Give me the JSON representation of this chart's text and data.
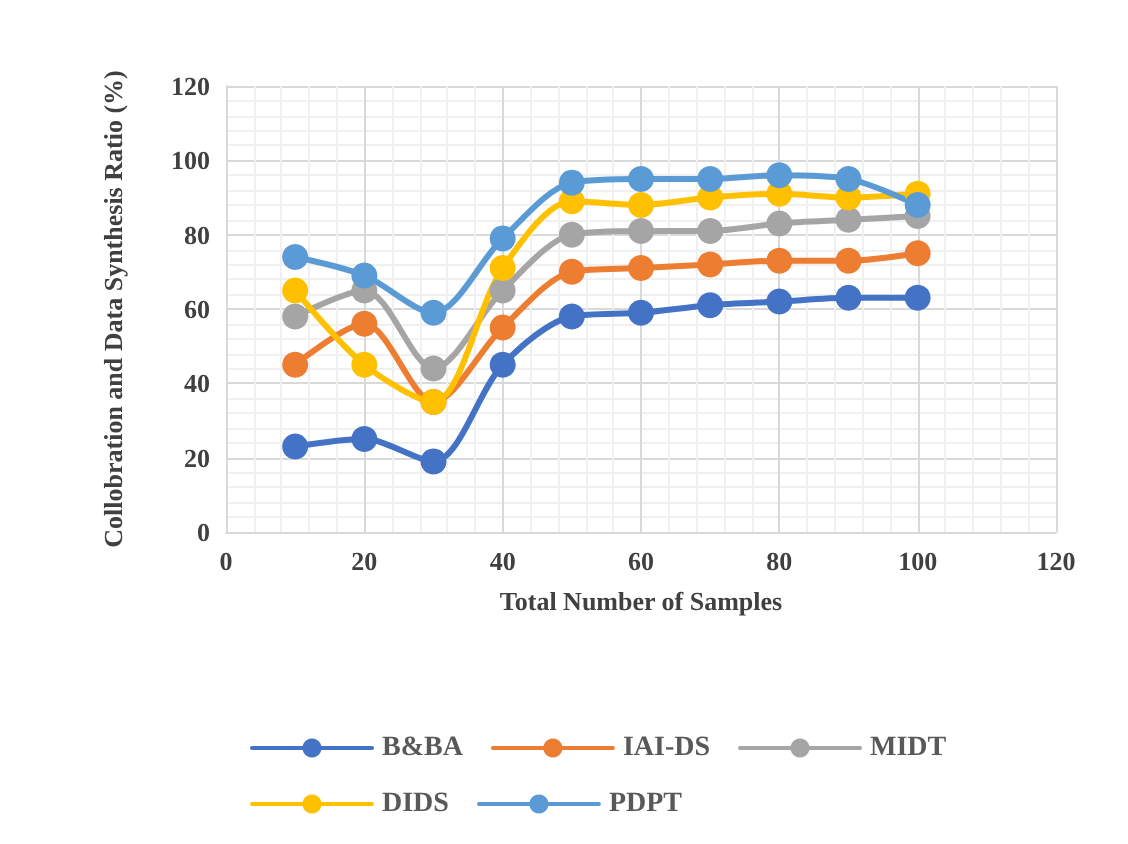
{
  "chart_data": {
    "type": "line",
    "xlabel": "Total Number of Samples",
    "ylabel": "Collobration and Data Synthesis Ratio (%)",
    "x": [
      10,
      20,
      30,
      40,
      50,
      60,
      70,
      80,
      90,
      100
    ],
    "series": [
      {
        "name": "B&BA",
        "color": "#4472c4",
        "values": [
          23,
          25,
          19,
          45,
          58,
          59,
          61,
          62,
          63,
          63
        ]
      },
      {
        "name": "IAI-DS",
        "color": "#ed7d31",
        "values": [
          45,
          56,
          35,
          55,
          70,
          71,
          72,
          73,
          73,
          75
        ]
      },
      {
        "name": "MIDT",
        "color": "#a5a5a5",
        "values": [
          58,
          65,
          44,
          65,
          80,
          81,
          81,
          83,
          84,
          85
        ]
      },
      {
        "name": "DIDS",
        "color": "#ffc000",
        "values": [
          65,
          45,
          35,
          71,
          89,
          88,
          90,
          91,
          90,
          91
        ]
      },
      {
        "name": "PDPT",
        "color": "#5b9bd5",
        "values": [
          74,
          69,
          59,
          79,
          94,
          95,
          95,
          96,
          95,
          88
        ]
      }
    ],
    "xlim": [
      0,
      120
    ],
    "xticks": [
      0,
      20,
      40,
      60,
      80,
      100,
      120
    ],
    "ylim": [
      0,
      120
    ],
    "yticks": [
      0,
      20,
      40,
      60,
      80,
      100,
      120
    ],
    "grid": true,
    "legend": "bottom",
    "marker": "circle",
    "line_style": "solid"
  }
}
